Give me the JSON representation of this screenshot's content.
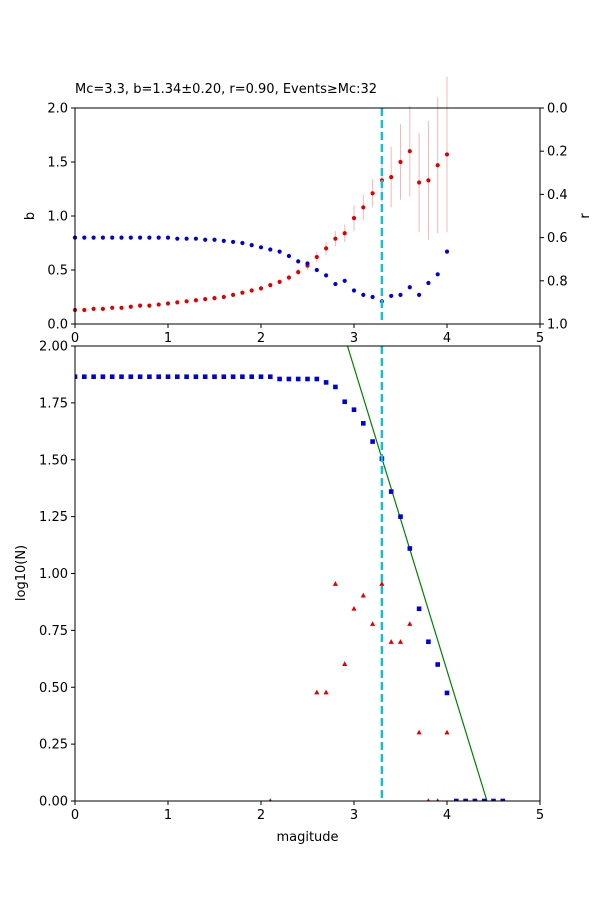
{
  "chart_data": [
    {
      "type": "scatter",
      "title": "Mc=3.3, b=1.34±0.20, r=0.90, Events≥Mc:32",
      "xlabel": "",
      "ylabel": "b",
      "ylabel_right": "r",
      "xlim": [
        0,
        5
      ],
      "ylim": [
        0,
        2.0
      ],
      "ylim_right": [
        1.0,
        0.0
      ],
      "x_ticks": [
        "0",
        "1",
        "2",
        "3",
        "4",
        "5"
      ],
      "y_ticks": [
        "0.0",
        "0.5",
        "1.0",
        "1.5",
        "2.0"
      ],
      "y_ticks_right": [
        "0.0",
        "0.2",
        "0.4",
        "0.6",
        "0.8",
        "1.0"
      ],
      "grid": false,
      "mc_line_x": 3.3,
      "series": [
        {
          "axis": "left",
          "color": "#e00000",
          "x": [
            0.0,
            0.1,
            0.2,
            0.3,
            0.4,
            0.5,
            0.6,
            0.7,
            0.8,
            0.9,
            1.0,
            1.1,
            1.2,
            1.3,
            1.4,
            1.5,
            1.6,
            1.7,
            1.8,
            1.9,
            2.0,
            2.1,
            2.2,
            2.3,
            2.4,
            2.5,
            2.6,
            2.7,
            2.8,
            2.9,
            3.0,
            3.1,
            3.2,
            3.3,
            3.4,
            3.5,
            3.6,
            3.7,
            3.8,
            3.9,
            4.0
          ],
          "values": [
            0.13,
            0.13,
            0.14,
            0.14,
            0.15,
            0.15,
            0.16,
            0.17,
            0.17,
            0.18,
            0.19,
            0.2,
            0.21,
            0.22,
            0.23,
            0.24,
            0.25,
            0.27,
            0.29,
            0.31,
            0.33,
            0.36,
            0.39,
            0.43,
            0.48,
            0.54,
            0.62,
            0.7,
            0.79,
            0.84,
            0.98,
            1.08,
            1.21,
            1.33,
            1.36,
            1.5,
            1.6,
            1.31,
            1.33,
            1.47,
            1.57
          ],
          "errors": [
            0.01,
            0.01,
            0.01,
            0.01,
            0.01,
            0.01,
            0.01,
            0.01,
            0.01,
            0.01,
            0.01,
            0.01,
            0.01,
            0.01,
            0.01,
            0.01,
            0.01,
            0.01,
            0.02,
            0.02,
            0.02,
            0.02,
            0.02,
            0.03,
            0.03,
            0.04,
            0.05,
            0.06,
            0.07,
            0.08,
            0.12,
            0.12,
            0.13,
            0.2,
            0.28,
            0.35,
            0.42,
            0.46,
            0.55,
            0.63,
            0.72
          ]
        },
        {
          "axis": "right",
          "color": "#0000dd",
          "x": [
            0.0,
            0.1,
            0.2,
            0.3,
            0.4,
            0.5,
            0.6,
            0.7,
            0.8,
            0.9,
            1.0,
            1.1,
            1.2,
            1.3,
            1.4,
            1.5,
            1.6,
            1.7,
            1.8,
            1.9,
            2.0,
            2.1,
            2.2,
            2.3,
            2.4,
            2.5,
            2.6,
            2.7,
            2.8,
            2.9,
            3.0,
            3.1,
            3.2,
            3.3,
            3.4,
            3.5,
            3.6,
            3.7,
            3.8,
            3.9,
            4.0
          ],
          "values": [
            0.6,
            0.6,
            0.6,
            0.6,
            0.6,
            0.6,
            0.6,
            0.6,
            0.6,
            0.6,
            0.6,
            0.605,
            0.605,
            0.605,
            0.61,
            0.61,
            0.615,
            0.62,
            0.625,
            0.635,
            0.645,
            0.655,
            0.665,
            0.685,
            0.71,
            0.72,
            0.75,
            0.775,
            0.815,
            0.8,
            0.845,
            0.865,
            0.875,
            0.895,
            0.87,
            0.865,
            0.83,
            0.865,
            0.81,
            0.77,
            0.665
          ]
        }
      ]
    },
    {
      "type": "scatter",
      "title": "",
      "xlabel": "magitude",
      "ylabel": "log10(N)",
      "xlim": [
        0,
        5
      ],
      "ylim": [
        0,
        2.0
      ],
      "x_ticks": [
        "0",
        "1",
        "2",
        "3",
        "4",
        "5"
      ],
      "y_ticks": [
        "0.00",
        "0.25",
        "0.50",
        "0.75",
        "1.00",
        "1.25",
        "1.50",
        "1.75",
        "2.00"
      ],
      "grid": false,
      "mc_line_x": 3.3,
      "fit_line": {
        "color": "#008000",
        "x": [
          2.93,
          4.43
        ],
        "y": [
          2.0,
          0.0
        ]
      },
      "series": [
        {
          "marker": "square",
          "color": "#0000dd",
          "x": [
            0.0,
            0.1,
            0.2,
            0.3,
            0.4,
            0.5,
            0.6,
            0.7,
            0.8,
            0.9,
            1.0,
            1.1,
            1.2,
            1.3,
            1.4,
            1.5,
            1.6,
            1.7,
            1.8,
            1.9,
            2.0,
            2.1,
            2.2,
            2.3,
            2.4,
            2.5,
            2.6,
            2.7,
            2.8,
            2.9,
            3.0,
            3.1,
            3.2,
            3.3,
            3.4,
            3.5,
            3.6,
            3.7,
            3.8,
            3.9,
            4.0,
            4.1,
            4.2,
            4.3,
            4.4,
            4.5,
            4.6
          ],
          "values": [
            1.865,
            1.865,
            1.865,
            1.865,
            1.865,
            1.865,
            1.865,
            1.865,
            1.865,
            1.865,
            1.865,
            1.865,
            1.865,
            1.865,
            1.865,
            1.865,
            1.865,
            1.865,
            1.865,
            1.865,
            1.865,
            1.865,
            1.855,
            1.855,
            1.855,
            1.855,
            1.855,
            1.84,
            1.82,
            1.755,
            1.72,
            1.66,
            1.58,
            1.505,
            1.36,
            1.25,
            1.11,
            0.845,
            0.7,
            0.6,
            0.475,
            0.0,
            0.0,
            0.0,
            0.0,
            0.0,
            0.0
          ]
        },
        {
          "marker": "triangle",
          "color": "#e00000",
          "x": [
            2.1,
            2.6,
            2.7,
            2.8,
            2.9,
            3.0,
            3.1,
            3.2,
            3.3,
            3.4,
            3.5,
            3.6,
            3.7,
            3.8,
            3.9,
            4.0
          ],
          "values": [
            0.0,
            0.477,
            0.477,
            0.954,
            0.602,
            0.845,
            0.903,
            0.778,
            0.954,
            0.699,
            0.699,
            0.778,
            0.301,
            0.0,
            0.0,
            0.301
          ]
        }
      ]
    }
  ]
}
